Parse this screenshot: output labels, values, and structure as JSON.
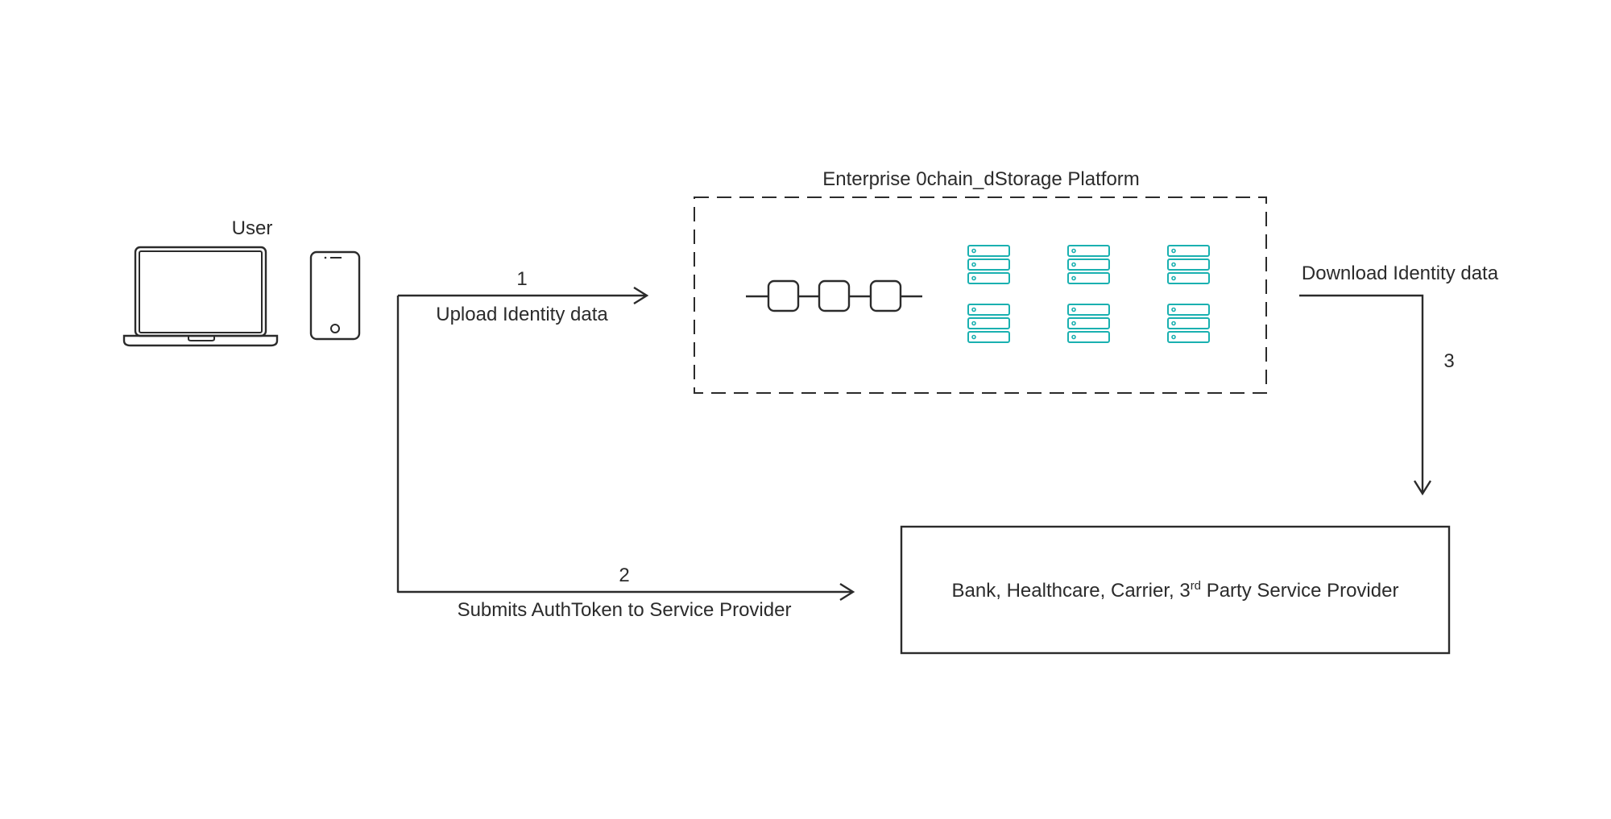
{
  "labels": {
    "user": "User",
    "platform": "Enterprise 0chain_dStorage Platform",
    "upload": "Upload Identity data",
    "download": "Download Identity data",
    "submits": "Submits AuthToken to Service Provider",
    "provider_prefix": "Bank, Healthcare, Carrier, 3",
    "provider_sup": "rd",
    "provider_suffix": " Party Service Provider"
  },
  "steps": {
    "one": "1",
    "two": "2",
    "three": "3"
  },
  "icons": {
    "laptop": "laptop-icon",
    "phone": "smartphone-icon",
    "blockchain": "blockchain-icon",
    "server": "server-icon"
  },
  "colors": {
    "stroke": "#2b2b2b",
    "server_accent": "#1ab0b0"
  }
}
